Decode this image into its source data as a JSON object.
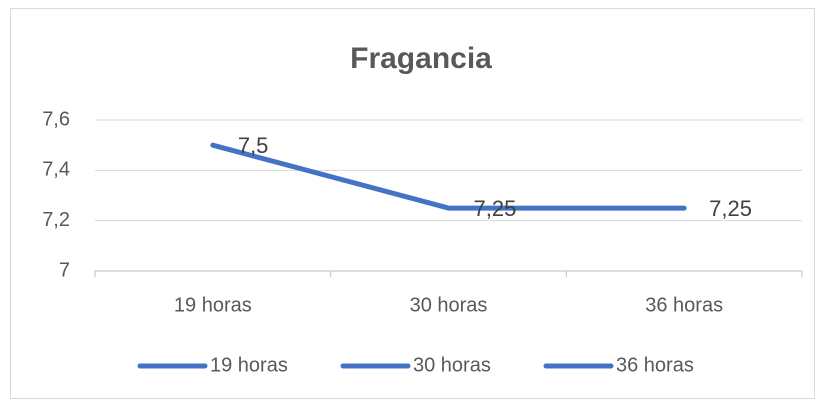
{
  "chart_data": {
    "type": "line",
    "title": "Fragancia",
    "categories": [
      "19 horas",
      "30 horas",
      "36 horas"
    ],
    "series": [
      {
        "color": "#4472c4",
        "values": [
          7.5,
          7.25,
          7.25
        ],
        "value_labels": [
          "7,5",
          "7,25",
          "7,25"
        ]
      }
    ],
    "ylim": [
      7,
      7.6
    ],
    "yticks": [
      7,
      {
        "value": 7.2,
        "label": "7,2"
      },
      {
        "value": 7.4,
        "label": "7,4"
      },
      {
        "value": 7.6,
        "label": "7,6"
      }
    ],
    "grid": true,
    "legend": "bottom"
  }
}
